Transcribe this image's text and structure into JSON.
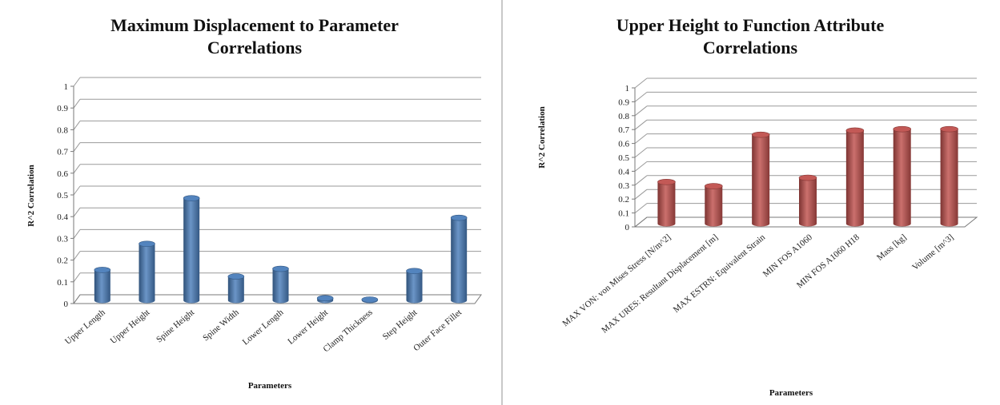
{
  "chart_data": [
    {
      "type": "bar",
      "title": "Maximum Displacement to Parameter Correlations",
      "title_lines": [
        "Maximum Displacement to Parameter",
        "Correlations"
      ],
      "xlabel": "Parameters",
      "ylabel": "R^2  Correlation",
      "ylim": [
        0,
        1
      ],
      "yticks": [
        "0",
        "0.1",
        "0.2",
        "0.3",
        "0.4",
        "0.5",
        "0.6",
        "0.7",
        "0.8",
        "0.9",
        "1"
      ],
      "categories": [
        "Upper Length",
        "Upper Height",
        "Spine Height",
        "Spine Width",
        "Lower Length",
        "Lower Height",
        "Clamp Thickness",
        "Step Height",
        "Outer Face Fillet"
      ],
      "values": [
        0.14,
        0.26,
        0.47,
        0.11,
        0.145,
        0.01,
        0.003,
        0.135,
        0.38
      ],
      "color": "#4a7ebb",
      "style": "3d-cylinder",
      "grid": true,
      "legend": "none"
    },
    {
      "type": "bar",
      "title": "Upper Height to Function Attribute Correlations",
      "title_lines": [
        "Upper Height to Function Attribute",
        "Correlations"
      ],
      "xlabel": "Parameters",
      "ylabel": "R^2  Correlation",
      "ylim": [
        0,
        1
      ],
      "yticks": [
        "0",
        "0.1",
        "0.2",
        "0.3",
        "0.4",
        "0.5",
        "0.6",
        "0.7",
        "0.8",
        "0.9",
        "1"
      ],
      "categories": [
        "MAX VON: von Mises Stress [N/m^2]",
        "MAX URES: Resultant Displacement [m]",
        "MAX ESTRN: Equivalent Strain",
        "MIN FOS A1060",
        "MIN FOS A1060 H18",
        "Mass [kg]",
        "Volume [m^3]"
      ],
      "values": [
        0.3,
        0.27,
        0.64,
        0.33,
        0.67,
        0.68,
        0.68
      ],
      "color": "#c0504d",
      "style": "3d-cylinder",
      "grid": true,
      "legend": "none"
    }
  ]
}
